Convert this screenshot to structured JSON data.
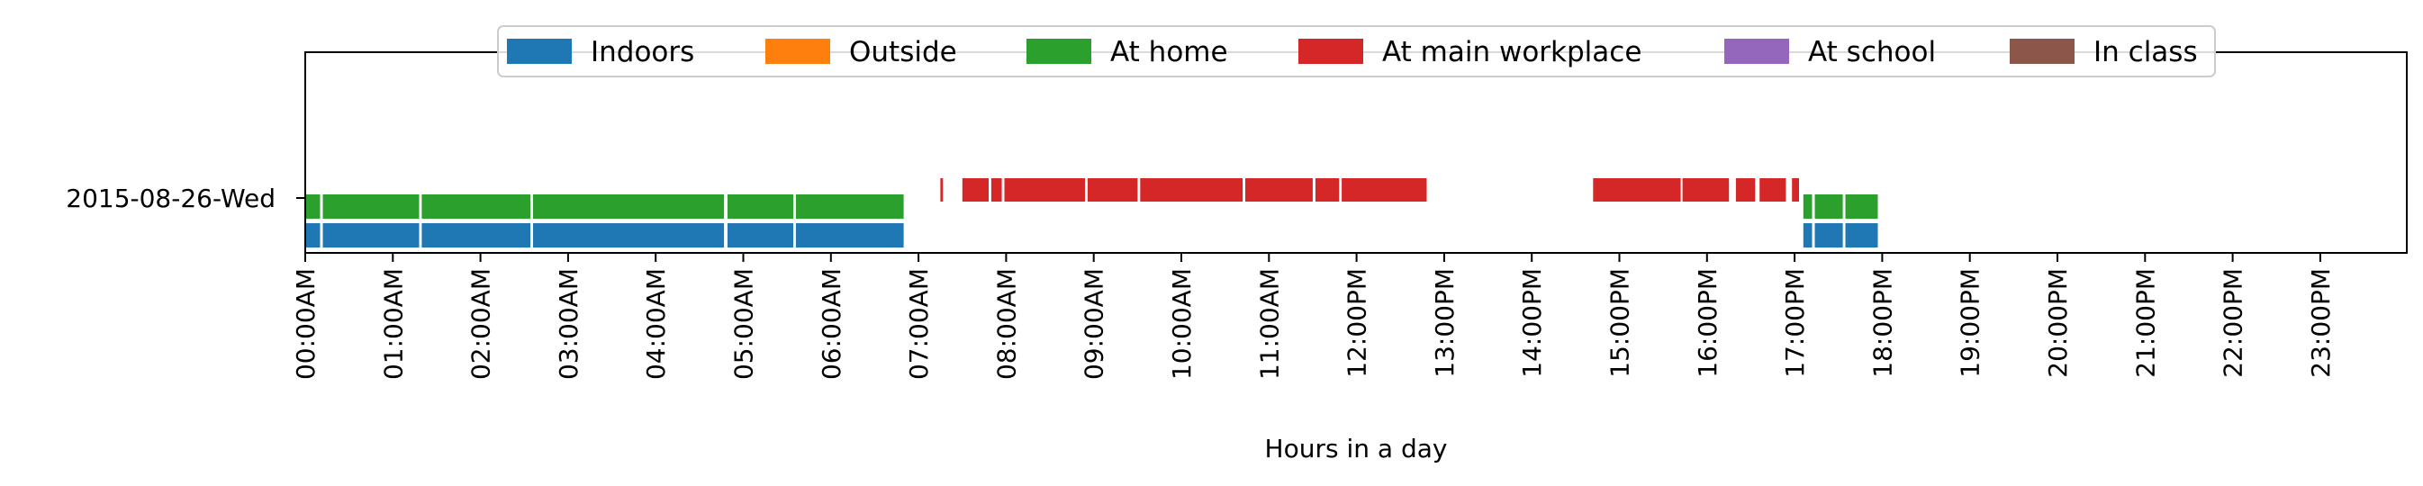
{
  "chart_data": {
    "type": "timeline",
    "title": "",
    "xlabel": "Hours in a day",
    "ylabel": "",
    "xlim": [
      0,
      24
    ],
    "date_label": "2015-08-26-Wed",
    "x_tick_labels": [
      "00:00AM",
      "01:00AM",
      "02:00AM",
      "03:00AM",
      "04:00AM",
      "05:00AM",
      "06:00AM",
      "07:00AM",
      "08:00AM",
      "09:00AM",
      "10:00AM",
      "11:00AM",
      "12:00PM",
      "13:00PM",
      "14:00PM",
      "15:00PM",
      "16:00PM",
      "17:00PM",
      "18:00PM",
      "19:00PM",
      "20:00PM",
      "21:00PM",
      "22:00PM",
      "23:00PM"
    ],
    "legend_position": "top-center",
    "series": [
      {
        "name": "Indoors",
        "color": "#1f77b4",
        "intervals": [
          [
            0,
            0.17
          ],
          [
            0.2,
            1.3
          ],
          [
            1.33,
            2.57
          ],
          [
            2.6,
            4.78
          ],
          [
            4.82,
            5.57
          ],
          [
            5.6,
            6.83
          ],
          [
            17.1,
            17.2
          ],
          [
            17.23,
            17.55
          ],
          [
            17.58,
            17.95
          ]
        ]
      },
      {
        "name": "Outside",
        "color": "#ff7f0e",
        "intervals": []
      },
      {
        "name": "At home",
        "color": "#2ca02c",
        "intervals": [
          [
            0,
            0.17
          ],
          [
            0.2,
            1.3
          ],
          [
            1.33,
            2.57
          ],
          [
            2.6,
            4.78
          ],
          [
            4.82,
            5.57
          ],
          [
            5.6,
            6.83
          ],
          [
            17.1,
            17.2
          ],
          [
            17.23,
            17.55
          ],
          [
            17.58,
            17.95
          ]
        ]
      },
      {
        "name": "At main workplace",
        "color": "#d62728",
        "intervals": [
          [
            7.25,
            7.28
          ],
          [
            7.5,
            7.8
          ],
          [
            7.83,
            7.95
          ],
          [
            7.98,
            8.9
          ],
          [
            8.93,
            9.5
          ],
          [
            9.53,
            10.7
          ],
          [
            10.73,
            11.5
          ],
          [
            11.53,
            11.8
          ],
          [
            11.83,
            12.8
          ],
          [
            14.7,
            15.7
          ],
          [
            15.72,
            16.25
          ],
          [
            16.33,
            16.55
          ],
          [
            16.6,
            16.9
          ],
          [
            16.97,
            17.05
          ]
        ]
      },
      {
        "name": "At school",
        "color": "#9467bd",
        "intervals": []
      },
      {
        "name": "In class",
        "color": "#8c564b",
        "intervals": []
      }
    ]
  }
}
